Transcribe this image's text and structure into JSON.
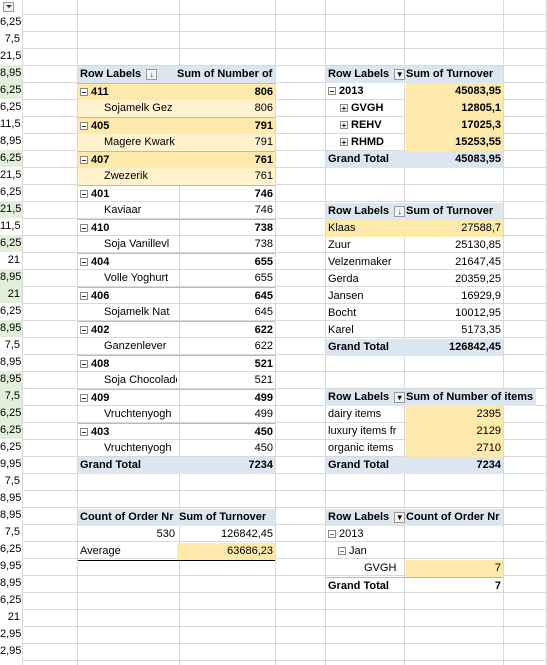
{
  "left_column": [
    "",
    "6,25",
    "7,5",
    "21,5",
    "8,95",
    "6,25",
    "6,25",
    "11,5",
    "8,95",
    "6,25",
    "21,5",
    "6,25",
    "21,5",
    "11,5",
    "6,25",
    "21",
    "8,95",
    "21",
    "6,25",
    "8,95",
    "7,5",
    "8,95",
    "8,95",
    "7,5",
    "6,25",
    "6,25",
    "6,25",
    "9,95",
    "7,5",
    "8,95",
    "8,95",
    "7,5",
    "6,25",
    "9,95",
    "8,95",
    "6,25",
    "21",
    "2,95",
    "2,95"
  ],
  "pivot1": {
    "headers": [
      "Row Labels",
      "Sum of Number of items"
    ],
    "rows": [
      {
        "label": "411",
        "value": "806",
        "group": true
      },
      {
        "label": "Sojamelk Gez",
        "value": "806",
        "group": false
      },
      {
        "label": "405",
        "value": "791",
        "group": true
      },
      {
        "label": "Magere Kwark",
        "value": "791",
        "group": false
      },
      {
        "label": "407",
        "value": "761",
        "group": true
      },
      {
        "label": "Zwezerik",
        "value": "761",
        "group": false
      },
      {
        "label": "401",
        "value": "746",
        "group": true
      },
      {
        "label": "Kaviaar",
        "value": "746",
        "group": false
      },
      {
        "label": "410",
        "value": "738",
        "group": true
      },
      {
        "label": "Soja Vanillevl",
        "value": "738",
        "group": false
      },
      {
        "label": "404",
        "value": "655",
        "group": true
      },
      {
        "label": "Volle Yoghurt",
        "value": "655",
        "group": false
      },
      {
        "label": "406",
        "value": "645",
        "group": true
      },
      {
        "label": "Sojamelk Nat",
        "value": "645",
        "group": false
      },
      {
        "label": "402",
        "value": "622",
        "group": true
      },
      {
        "label": "Ganzenlever",
        "value": "622",
        "group": false
      },
      {
        "label": "408",
        "value": "521",
        "group": true
      },
      {
        "label": "Soja Chocolade",
        "value": "521",
        "group": false
      },
      {
        "label": "409",
        "value": "499",
        "group": true
      },
      {
        "label": "Vruchtenyogh",
        "value": "499",
        "group": false
      },
      {
        "label": "403",
        "value": "450",
        "group": true
      },
      {
        "label": "Vruchtenyogh",
        "value": "450",
        "group": false
      }
    ],
    "total_label": "Grand Total",
    "total_value": "7234"
  },
  "pivot2": {
    "headers": [
      "Row Labels",
      "Sum of Turnover"
    ],
    "rows": [
      {
        "label": "2013",
        "value": "45083,95",
        "level": 0
      },
      {
        "label": "GVGH",
        "value": "12805,1",
        "level": 1
      },
      {
        "label": "REHV",
        "value": "17025,3",
        "level": 1
      },
      {
        "label": "RHMD",
        "value": "15253,55",
        "level": 1
      }
    ],
    "total_label": "Grand Total",
    "total_value": "45083,95"
  },
  "pivot3": {
    "headers": [
      "Row Labels",
      "Sum of Turnover"
    ],
    "rows": [
      {
        "label": "Klaas",
        "value": "27588,7"
      },
      {
        "label": "Zuur",
        "value": "25130,85"
      },
      {
        "label": "Velzenmaker",
        "value": "21647,45"
      },
      {
        "label": "Gerda",
        "value": "20359,25"
      },
      {
        "label": "Jansen",
        "value": "16929,9"
      },
      {
        "label": "Bocht",
        "value": "10012,95"
      },
      {
        "label": "Karel",
        "value": "5173,35"
      }
    ],
    "total_label": "Grand Total",
    "total_value": "126842,45"
  },
  "pivot4": {
    "headers": [
      "Row Labels",
      "Sum of Number of items"
    ],
    "rows": [
      {
        "label": "dairy items",
        "value": "2395"
      },
      {
        "label": "luxury items fr",
        "value": "2129"
      },
      {
        "label": "organic items",
        "value": "2710"
      }
    ],
    "total_label": "Grand Total",
    "total_value": "7234"
  },
  "summary": {
    "headers": [
      "Count of Order Nr",
      "Sum of Turnover"
    ],
    "count": "530",
    "sum": "126842,45",
    "avg_label": "Average",
    "avg_value": "63686,23"
  },
  "pivot5": {
    "headers": [
      "Row Labels",
      "Count of Order Nr"
    ],
    "year": "2013",
    "month": "Jan",
    "item": "GVGH",
    "item_value": "7",
    "total_label": "Grand Total",
    "total_value": "7"
  }
}
